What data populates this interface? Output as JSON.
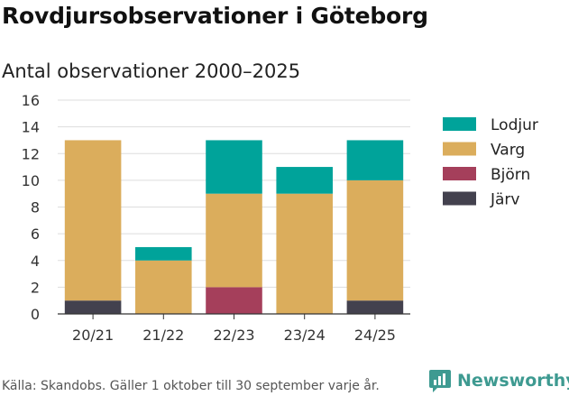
{
  "header": {
    "title": "Rovdjursobservationer i Göteborg",
    "subtitle": "Antal observationer 2000–2025"
  },
  "footer": {
    "source": "Källa: Skandobs. Gäller 1 oktober till 30 september varje år.",
    "brand": "Newsworthy"
  },
  "chart_data": {
    "type": "bar",
    "stacked": true,
    "title": "Antal observationer 2000–2025",
    "xlabel": "",
    "ylabel": "",
    "categories": [
      "20/21",
      "21/22",
      "22/23",
      "23/24",
      "24/25"
    ],
    "ylim": [
      0,
      16
    ],
    "yticks": [
      0,
      2,
      4,
      6,
      8,
      10,
      12,
      14,
      16
    ],
    "grid": true,
    "legend": "right",
    "series": [
      {
        "name": "Järv",
        "color": "#43414e",
        "values": [
          1,
          0,
          0,
          0,
          1
        ]
      },
      {
        "name": "Björn",
        "color": "#a53f5b",
        "values": [
          0,
          0,
          2,
          0,
          0
        ]
      },
      {
        "name": "Varg",
        "color": "#dbad5c",
        "values": [
          12,
          4,
          7,
          9,
          9
        ]
      },
      {
        "name": "Lodjur",
        "color": "#00a39a",
        "values": [
          0,
          1,
          4,
          2,
          3
        ]
      }
    ],
    "legend_order": [
      "Lodjur",
      "Varg",
      "Björn",
      "Järv"
    ]
  }
}
